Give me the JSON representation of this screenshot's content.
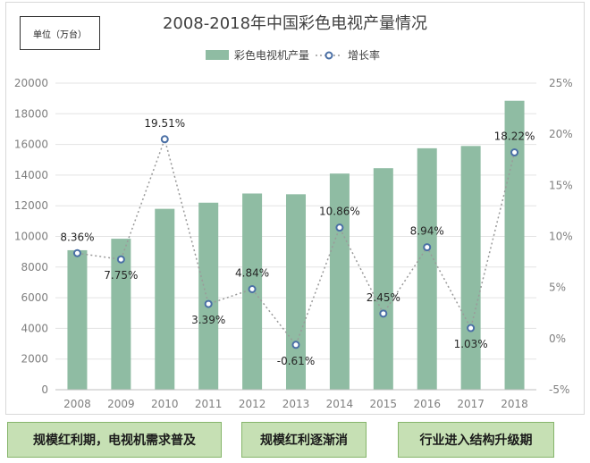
{
  "unit_label": "单位（万台）",
  "phases": [
    "规模红利期，电视机需求普及",
    "规模红利逐渐消",
    "行业进入结构升级期"
  ],
  "colors": {
    "bar": "#8fbca3",
    "line": "#9a9a9a",
    "marker_fill": "#4a6fa5",
    "phase_bg": "#c6e0b4"
  },
  "chart_data": {
    "type": "bar",
    "title": "2008-2018年中国彩色电视产量情况",
    "categories": [
      "2008",
      "2009",
      "2010",
      "2011",
      "2012",
      "2013",
      "2014",
      "2015",
      "2016",
      "2017",
      "2018"
    ],
    "series": [
      {
        "name": "彩色电视机产量",
        "type": "bar",
        "axis": "left",
        "values": [
          9100,
          9850,
          11800,
          12200,
          12800,
          12750,
          14100,
          14450,
          15750,
          15900,
          18850
        ]
      },
      {
        "name": "增长率",
        "type": "line",
        "axis": "right",
        "values": [
          8.36,
          7.75,
          19.51,
          3.39,
          4.84,
          -0.61,
          10.86,
          2.45,
          8.94,
          1.03,
          18.22
        ],
        "labels": [
          "8.36%",
          "7.75%",
          "19.51%",
          "3.39%",
          "4.84%",
          "-0.61%",
          "10.86%",
          "2.45%",
          "8.94%",
          "1.03%",
          "18.22%"
        ]
      }
    ],
    "ylim": [
      0,
      20000
    ],
    "yticks": [
      "0",
      "2000",
      "4000",
      "6000",
      "8000",
      "10000",
      "12000",
      "14000",
      "16000",
      "18000",
      "20000"
    ],
    "y2lim": [
      -5,
      25
    ],
    "y2ticks": [
      "-5%",
      "0%",
      "5%",
      "10%",
      "15%",
      "20%",
      "25%"
    ],
    "grid": true,
    "legend_position": "top"
  }
}
